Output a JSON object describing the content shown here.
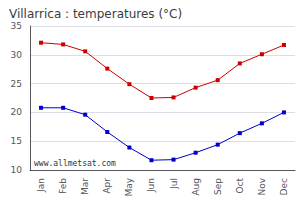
{
  "chart_data": {
    "type": "line",
    "title": "Villarrica : temperatures (°C)",
    "categories": [
      "Jan",
      "Feb",
      "Mar",
      "Apr",
      "May",
      "Jun",
      "Jul",
      "Aug",
      "Sep",
      "Oct",
      "Nov",
      "Dec"
    ],
    "series": [
      {
        "color": "#cc0000",
        "marker": "square",
        "values": [
          32.1,
          31.8,
          30.6,
          27.6,
          24.9,
          22.5,
          22.6,
          24.3,
          25.6,
          28.5,
          30.1,
          31.7
        ]
      },
      {
        "color": "#0000cc",
        "marker": "square",
        "values": [
          20.8,
          20.8,
          19.6,
          16.6,
          13.9,
          11.7,
          11.8,
          13.0,
          14.4,
          16.4,
          18.1,
          20.0
        ]
      }
    ],
    "ylim": [
      10,
      35
    ],
    "yticks": [
      10,
      15,
      20,
      25,
      30,
      35
    ],
    "grid": true,
    "annotation": "www.allmetsat.com"
  }
}
